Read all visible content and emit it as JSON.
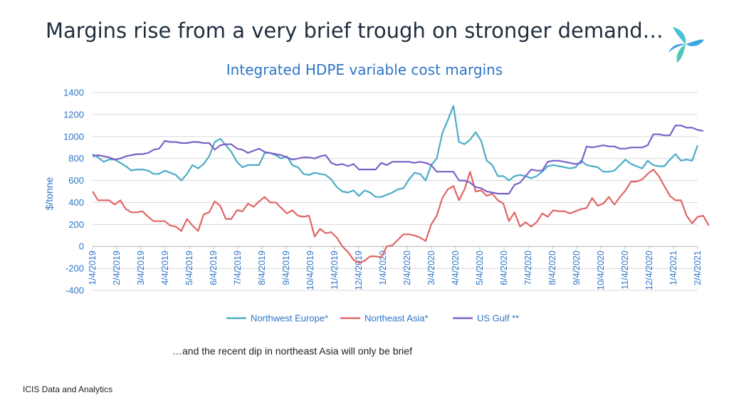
{
  "slide": {
    "title": "Margins rise from a very brief trough on stronger demand…",
    "subcaption": "…and the recent dip in northeast Asia will only be brief",
    "source": "ICIS Data and Analytics",
    "logo_icon": "icis-logo-icon"
  },
  "colors": {
    "nw_europe": "#4bacc6",
    "ne_asia": "#e06666",
    "us_gulf": "#7b61c8",
    "axis_text": "#2e75c6",
    "gridline": "#d9d9d9"
  },
  "chart_data": {
    "type": "line",
    "title": "Integrated HDPE variable cost margins",
    "ylabel": "$/tonne",
    "xlabel": "",
    "ylim": [
      -400,
      1400
    ],
    "yticks": [
      "1400",
      "1200",
      "1000",
      "800",
      "600",
      "400",
      "200",
      "0",
      "-200",
      "-400"
    ],
    "grid": true,
    "legend_position": "bottom",
    "x_tick_labels": [
      "1/4/2019",
      "2/4/2019",
      "3/4/2019",
      "4/4/2019",
      "5/4/2019",
      "6/4/2019",
      "7/4/2019",
      "8/4/2019",
      "9/4/2019",
      "10/4/2019",
      "11/4/2019",
      "12/4/2019",
      "1/4/2020",
      "2/4/2020",
      "3/4/2020",
      "4/4/2020",
      "5/4/2020",
      "6/4/2020",
      "7/4/2020",
      "8/4/2020",
      "9/4/2020",
      "10/4/2020",
      "11/4/2020",
      "12/4/2020",
      "1/4/2021",
      "2/4/2021"
    ],
    "x_start": "2019-01-04",
    "x_interval": "weekly",
    "series": [
      {
        "name": "Northwest Europe*",
        "values": [
          840,
          810,
          770,
          790,
          790,
          760,
          730,
          690,
          700,
          700,
          690,
          660,
          660,
          690,
          670,
          650,
          600,
          660,
          740,
          710,
          750,
          820,
          950,
          980,
          920,
          860,
          770,
          720,
          740,
          740,
          740,
          850,
          850,
          830,
          800,
          820,
          740,
          720,
          660,
          650,
          670,
          660,
          650,
          610,
          540,
          500,
          490,
          510,
          460,
          510,
          490,
          450,
          450,
          470,
          490,
          520,
          530,
          610,
          670,
          660,
          600,
          740,
          800,
          1030,
          1150,
          1280,
          950,
          930,
          970,
          1040,
          960,
          780,
          740,
          640,
          640,
          600,
          640,
          650,
          640,
          620,
          640,
          680,
          730,
          740,
          730,
          720,
          710,
          720,
          780,
          740,
          730,
          720,
          680,
          680,
          690,
          740,
          790,
          750,
          730,
          710,
          780,
          740,
          730,
          730,
          790,
          840,
          780,
          790,
          780,
          920
        ],
        "color": "#4bacc6"
      },
      {
        "name": "Northeast Asia*",
        "values": [
          500,
          420,
          420,
          420,
          380,
          420,
          340,
          310,
          310,
          320,
          270,
          230,
          230,
          230,
          190,
          180,
          140,
          250,
          190,
          140,
          290,
          310,
          410,
          370,
          250,
          250,
          330,
          320,
          390,
          360,
          410,
          450,
          400,
          400,
          350,
          300,
          330,
          280,
          270,
          280,
          90,
          160,
          120,
          130,
          80,
          0,
          -50,
          -120,
          -150,
          -130,
          -90,
          -90,
          -100,
          0,
          10,
          60,
          110,
          110,
          100,
          80,
          50,
          200,
          280,
          440,
          520,
          550,
          420,
          520,
          680,
          500,
          510,
          460,
          480,
          420,
          390,
          230,
          310,
          180,
          220,
          180,
          220,
          300,
          270,
          330,
          320,
          320,
          300,
          320,
          340,
          350,
          440,
          370,
          390,
          450,
          380,
          450,
          510,
          590,
          590,
          610,
          660,
          700,
          640,
          550,
          460,
          420,
          420,
          280,
          210,
          270,
          280,
          190
        ],
        "color": "#e06666"
      },
      {
        "name": "US Gulf **",
        "values": [
          820,
          830,
          820,
          810,
          790,
          800,
          820,
          830,
          840,
          840,
          850,
          880,
          890,
          960,
          950,
          950,
          940,
          940,
          950,
          950,
          940,
          940,
          880,
          920,
          930,
          930,
          890,
          880,
          850,
          870,
          890,
          860,
          850,
          840,
          830,
          810,
          790,
          800,
          810,
          810,
          800,
          820,
          830,
          760,
          740,
          750,
          730,
          750,
          700,
          700,
          700,
          700,
          760,
          740,
          770,
          770,
          770,
          770,
          760,
          770,
          760,
          740,
          680,
          680,
          680,
          680,
          600,
          600,
          580,
          540,
          530,
          500,
          490,
          480,
          480,
          480,
          560,
          580,
          640,
          700,
          690,
          690,
          770,
          780,
          780,
          770,
          760,
          750,
          760,
          910,
          900,
          910,
          920,
          910,
          910,
          890,
          890,
          900,
          900,
          900,
          920,
          1020,
          1020,
          1010,
          1010,
          1100,
          1100,
          1080,
          1080,
          1060,
          1050
        ],
        "color": "#7b61c8"
      }
    ]
  }
}
